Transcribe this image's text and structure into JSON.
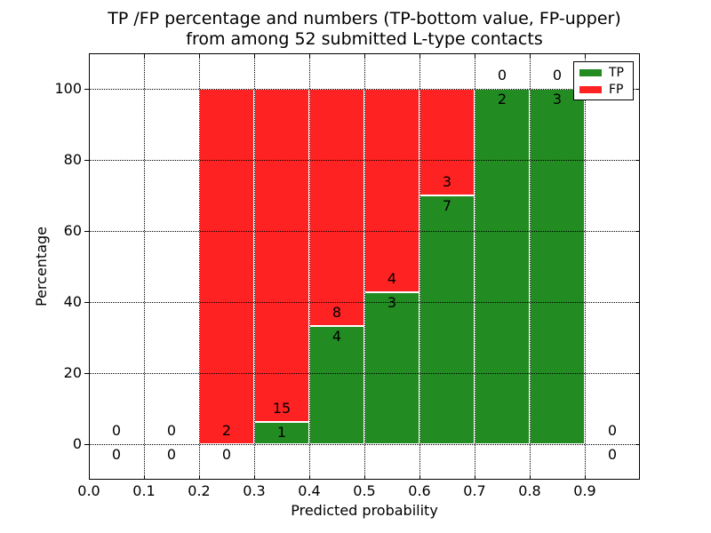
{
  "figure": {
    "title_line1": "TP /FP percentage and numbers (TP-bottom value, FP-upper)",
    "title_line2": "from among 52 submitted L-type contacts"
  },
  "colors": {
    "tp": "#228b22",
    "fp": "#ff2222",
    "grid": "#000000",
    "text": "#000000",
    "background": "#ffffff"
  },
  "chart_data": {
    "type": "bar",
    "stacked": true,
    "title": "TP /FP percentage and numbers (TP-bottom value, FP-upper)\nfrom among 52 submitted L-type contacts",
    "xlabel": "Predicted probability",
    "ylabel": "Percentage",
    "xlim": [
      0,
      1.0
    ],
    "ylim": [
      -10,
      110
    ],
    "grid": "dotted",
    "total_contacts": 52,
    "x_ticks": [
      {
        "value": 0.0,
        "label": "0.0"
      },
      {
        "value": 0.1,
        "label": "0.1"
      },
      {
        "value": 0.2,
        "label": "0.2"
      },
      {
        "value": 0.3,
        "label": "0.3"
      },
      {
        "value": 0.4,
        "label": "0.4"
      },
      {
        "value": 0.5,
        "label": "0.5"
      },
      {
        "value": 0.6,
        "label": "0.6"
      },
      {
        "value": 0.7,
        "label": "0.7"
      },
      {
        "value": 0.8,
        "label": "0.8"
      },
      {
        "value": 0.9,
        "label": "0.9"
      }
    ],
    "y_ticks": [
      {
        "value": 0,
        "label": "0"
      },
      {
        "value": 20,
        "label": "20"
      },
      {
        "value": 40,
        "label": "40"
      },
      {
        "value": 60,
        "label": "60"
      },
      {
        "value": 80,
        "label": "80"
      },
      {
        "value": 100,
        "label": "100"
      }
    ],
    "legend": {
      "position": "upper-right",
      "entries": [
        {
          "label": "TP",
          "color": "#228b22"
        },
        {
          "label": "FP",
          "color": "#ff2222"
        }
      ]
    },
    "series": [
      {
        "name": "TP",
        "color": "#228b22",
        "counts": [
          0,
          0,
          0,
          1,
          4,
          3,
          7,
          2,
          3,
          0
        ],
        "percentages": [
          0,
          0,
          0,
          6.25,
          33.33,
          42.86,
          70,
          100,
          100,
          0
        ]
      },
      {
        "name": "FP",
        "color": "#ff2222",
        "counts": [
          0,
          0,
          2,
          15,
          8,
          4,
          3,
          0,
          0,
          0
        ],
        "percentages": [
          0,
          0,
          100,
          93.75,
          66.67,
          57.14,
          30,
          0,
          0,
          0
        ]
      }
    ],
    "bins": [
      {
        "x_start": 0.0,
        "x_end": 0.1,
        "tp_count": 0,
        "fp_count": 0,
        "tp_pct": 0,
        "fp_pct": 0
      },
      {
        "x_start": 0.1,
        "x_end": 0.2,
        "tp_count": 0,
        "fp_count": 0,
        "tp_pct": 0,
        "fp_pct": 0
      },
      {
        "x_start": 0.2,
        "x_end": 0.3,
        "tp_count": 0,
        "fp_count": 2,
        "tp_pct": 0,
        "fp_pct": 100
      },
      {
        "x_start": 0.3,
        "x_end": 0.4,
        "tp_count": 1,
        "fp_count": 15,
        "tp_pct": 6.25,
        "fp_pct": 93.75
      },
      {
        "x_start": 0.4,
        "x_end": 0.5,
        "tp_count": 4,
        "fp_count": 8,
        "tp_pct": 33.33,
        "fp_pct": 66.67
      },
      {
        "x_start": 0.5,
        "x_end": 0.6,
        "tp_count": 3,
        "fp_count": 4,
        "tp_pct": 42.86,
        "fp_pct": 57.14
      },
      {
        "x_start": 0.6,
        "x_end": 0.7,
        "tp_count": 7,
        "fp_count": 3,
        "tp_pct": 70,
        "fp_pct": 30
      },
      {
        "x_start": 0.7,
        "x_end": 0.8,
        "tp_count": 2,
        "fp_count": 0,
        "tp_pct": 100,
        "fp_pct": 0
      },
      {
        "x_start": 0.8,
        "x_end": 0.9,
        "tp_count": 3,
        "fp_count": 0,
        "tp_pct": 100,
        "fp_pct": 0
      },
      {
        "x_start": 0.9,
        "x_end": 1.0,
        "tp_count": 0,
        "fp_count": 0,
        "tp_pct": 0,
        "fp_pct": 0
      }
    ]
  }
}
